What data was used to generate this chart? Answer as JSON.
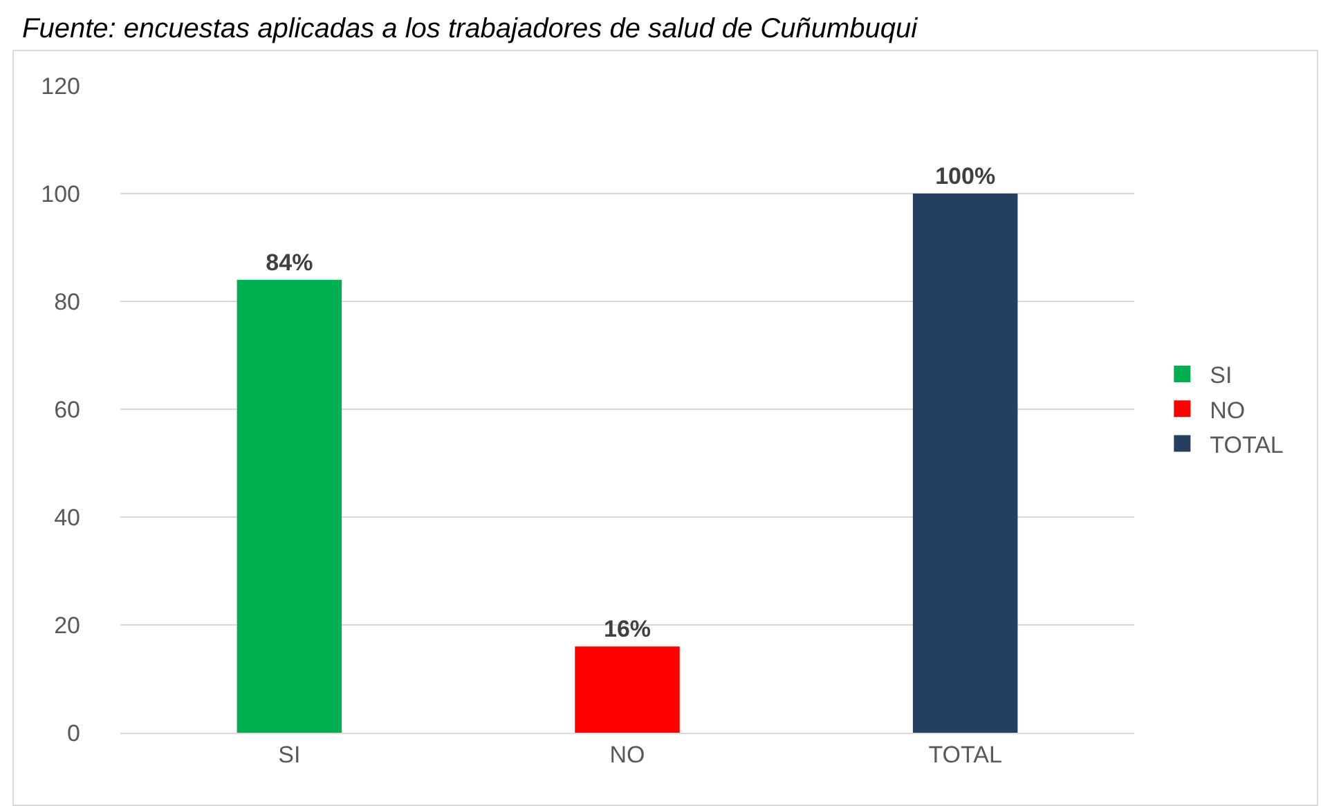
{
  "chart_data": {
    "type": "bar",
    "title": "Fuente: encuestas aplicadas a los trabajadores de salud de Cuñumbuqui",
    "categories": [
      "SI",
      "NO",
      "TOTAL"
    ],
    "series": [
      {
        "name": "SI",
        "color": "#00b050",
        "values": [
          84,
          null,
          null
        ],
        "value_labels": [
          "84%",
          null,
          null
        ]
      },
      {
        "name": "NO",
        "color": "#ff0000",
        "values": [
          null,
          16,
          null
        ],
        "value_labels": [
          null,
          "16%",
          null
        ]
      },
      {
        "name": "TOTAL",
        "color": "#243f60",
        "values": [
          null,
          null,
          100
        ],
        "value_labels": [
          null,
          null,
          "100%"
        ]
      }
    ],
    "ylim": [
      0,
      120
    ],
    "yticks": [
      0,
      20,
      40,
      60,
      80,
      100,
      120
    ],
    "grid": "y",
    "legend": "right"
  }
}
